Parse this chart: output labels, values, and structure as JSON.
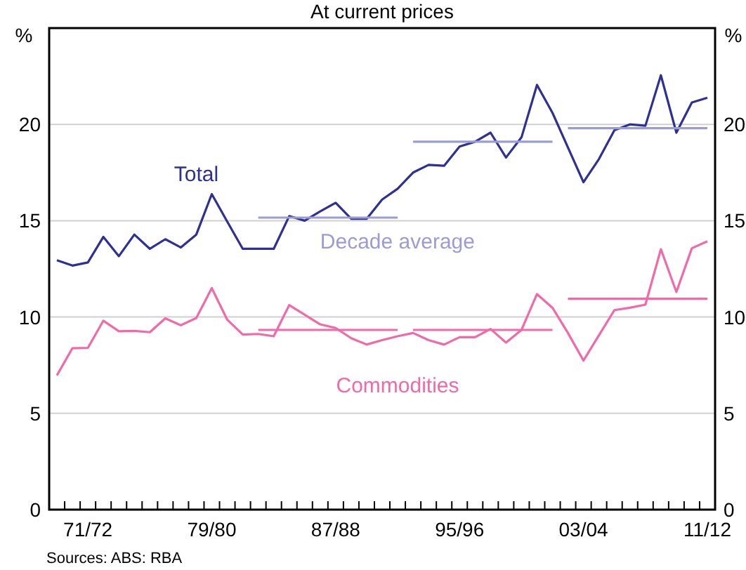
{
  "chart_data": {
    "type": "line",
    "title": "At current prices",
    "ylabel": "%",
    "y2label": "%",
    "categories": [
      null,
      null,
      "71/72",
      null,
      null,
      null,
      null,
      null,
      null,
      null,
      "79/80",
      null,
      null,
      null,
      null,
      null,
      null,
      null,
      "87/88",
      null,
      null,
      null,
      null,
      null,
      null,
      null,
      "95/96",
      null,
      null,
      null,
      null,
      null,
      null,
      null,
      "03/04",
      null,
      null,
      null,
      null,
      null,
      null,
      null,
      "11/12"
    ],
    "series": [
      {
        "name": "Total",
        "color": "#2e3192",
        "values": [
          12.95,
          12.67,
          12.83,
          14.16,
          13.16,
          14.28,
          13.54,
          14.04,
          13.61,
          14.28,
          16.38,
          14.95,
          13.54,
          13.54,
          13.54,
          15.24,
          15.0,
          15.48,
          15.93,
          15.1,
          15.1,
          16.1,
          16.66,
          17.5,
          17.9,
          17.85,
          18.85,
          19.1,
          19.57,
          18.28,
          19.33,
          22.05,
          20.6,
          18.8,
          17.0,
          18.2,
          19.7,
          20.0,
          19.93,
          22.55,
          19.57,
          21.14,
          21.38
        ]
      },
      {
        "name": "Commodities",
        "color": "#f06aa8",
        "values": [
          6.97,
          8.38,
          8.4,
          9.81,
          9.26,
          9.28,
          9.21,
          9.93,
          9.57,
          9.95,
          11.5,
          9.86,
          9.09,
          9.12,
          9.0,
          10.62,
          10.12,
          9.62,
          9.43,
          8.9,
          8.57,
          8.8,
          9.0,
          9.17,
          8.8,
          8.57,
          8.95,
          8.95,
          9.38,
          8.67,
          9.33,
          11.19,
          10.48,
          9.17,
          7.74,
          9.05,
          10.36,
          10.48,
          10.64,
          13.52,
          11.3,
          13.57,
          13.93
        ]
      },
      {
        "name": "Decade average",
        "color": "#9b9dd2",
        "values": [
          null,
          null,
          null,
          null,
          null,
          null,
          null,
          null,
          null,
          null,
          null,
          null,
          null,
          15.16,
          15.16,
          15.16,
          15.16,
          15.16,
          15.16,
          15.16,
          15.16,
          15.16,
          15.16,
          null,
          null,
          null,
          null,
          null,
          null,
          null,
          null,
          null,
          null,
          null,
          null,
          null,
          null,
          null,
          null,
          null,
          null,
          null,
          null
        ]
      },
      {
        "color": "#9b9dd2",
        "values": [
          null,
          null,
          null,
          null,
          null,
          null,
          null,
          null,
          null,
          null,
          null,
          null,
          null,
          null,
          null,
          null,
          null,
          null,
          null,
          null,
          null,
          null,
          null,
          19.1,
          19.1,
          19.1,
          19.1,
          19.1,
          19.1,
          19.1,
          19.1,
          19.1,
          19.1,
          null,
          null,
          null,
          null,
          null,
          null,
          null,
          null,
          null,
          null
        ]
      },
      {
        "color": "#9b9dd2",
        "values": [
          null,
          null,
          null,
          null,
          null,
          null,
          null,
          null,
          null,
          null,
          null,
          null,
          null,
          null,
          null,
          null,
          null,
          null,
          null,
          null,
          null,
          null,
          null,
          null,
          null,
          null,
          null,
          null,
          null,
          null,
          null,
          null,
          null,
          19.8,
          19.8,
          19.8,
          19.8,
          19.8,
          19.8,
          19.8,
          19.8,
          19.8,
          19.8
        ]
      },
      {
        "color": "#f06aa8",
        "values": [
          null,
          null,
          null,
          null,
          null,
          null,
          null,
          null,
          null,
          null,
          null,
          null,
          null,
          9.33,
          9.33,
          9.33,
          9.33,
          9.33,
          9.33,
          9.33,
          9.33,
          9.33,
          9.33,
          null,
          null,
          null,
          null,
          null,
          null,
          null,
          null,
          null,
          null,
          null,
          null,
          null,
          null,
          null,
          null,
          null,
          null,
          null,
          null
        ]
      },
      {
        "color": "#f06aa8",
        "values": [
          null,
          null,
          null,
          null,
          null,
          null,
          null,
          null,
          null,
          null,
          null,
          null,
          null,
          null,
          null,
          null,
          null,
          null,
          null,
          null,
          null,
          null,
          null,
          9.33,
          9.33,
          9.33,
          9.33,
          9.33,
          9.33,
          9.33,
          9.33,
          9.33,
          9.33,
          null,
          null,
          null,
          null,
          null,
          null,
          null,
          null,
          null,
          null
        ]
      },
      {
        "color": "#f06aa8",
        "values": [
          null,
          null,
          null,
          null,
          null,
          null,
          null,
          null,
          null,
          null,
          null,
          null,
          null,
          null,
          null,
          null,
          null,
          null,
          null,
          null,
          null,
          null,
          null,
          null,
          null,
          null,
          null,
          null,
          null,
          null,
          null,
          null,
          null,
          10.95,
          10.95,
          10.95,
          10.95,
          10.95,
          10.95,
          10.95,
          10.95,
          10.95,
          10.95
        ]
      }
    ],
    "ylim": [
      0,
      25
    ],
    "yticks": [
      0,
      5,
      10,
      15,
      20
    ],
    "y2lim": [
      0,
      25
    ],
    "y2ticks": [
      0,
      5,
      10,
      15,
      20
    ],
    "grid": "y",
    "legend": false,
    "marker": "none",
    "line_style": "solid",
    "annotations": [
      "Sources: ABS: RBA"
    ]
  }
}
